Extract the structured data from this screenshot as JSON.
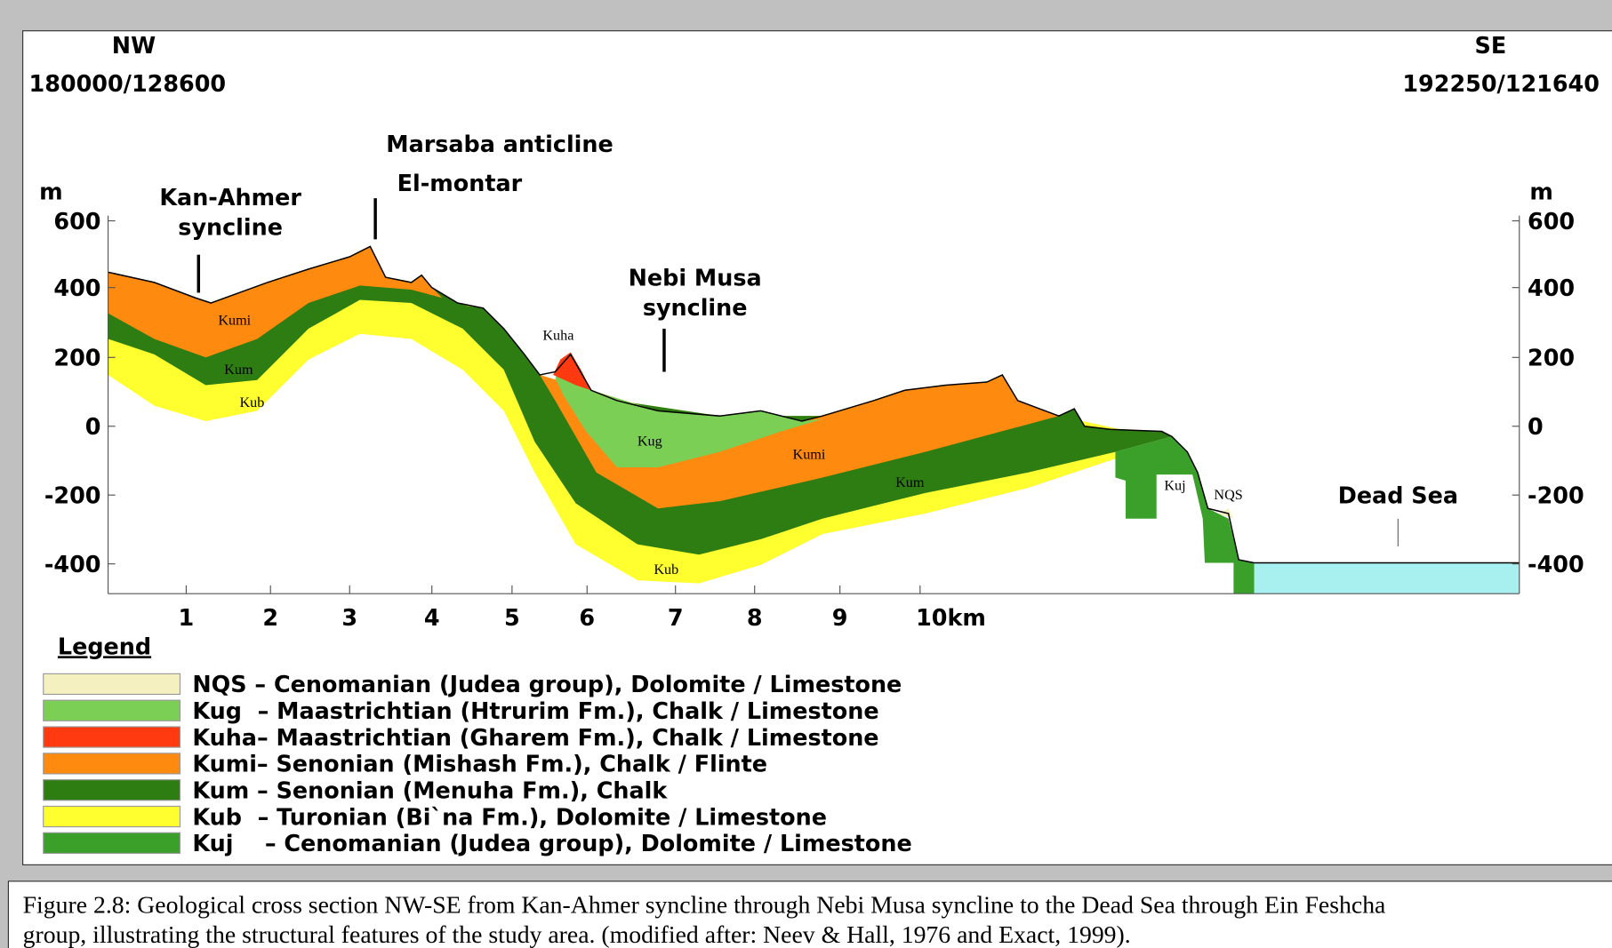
{
  "header": {
    "left_direction": "NW",
    "left_coordinates": "180000/128600",
    "right_direction": "SE",
    "right_coordinates": "192250/121640"
  },
  "features": {
    "kan_ahmer": [
      "Kan-Ahmer",
      "syncline"
    ],
    "marsaba": "Marsaba anticline",
    "el_montar": "El-montar",
    "nebi_musa": [
      "Nebi Musa",
      "syncline"
    ],
    "dead_sea": "Dead Sea"
  },
  "axes": {
    "left_unit": "m",
    "right_unit": "m",
    "left_ticks": [
      "600",
      "400",
      "200",
      "0",
      "-200",
      "-400"
    ],
    "right_ticks": [
      "600",
      "400",
      "200",
      "0",
      "-200",
      "-400"
    ],
    "x_ticks": [
      "1",
      "2",
      "3",
      "4",
      "5",
      "6",
      "7",
      "8",
      "9",
      "10km"
    ]
  },
  "section_labels": [
    "Kumi",
    "Kum",
    "Kub",
    "Kuha",
    "Kug",
    "Kumi",
    "Kum",
    "Kuj",
    "NQS",
    "Kub"
  ],
  "legend": {
    "title": "Legend",
    "items": [
      {
        "text": "NQS – Cenomanian (Judea group), Dolomite / Limestone",
        "color": "#f5f0c0"
      },
      {
        "text": "Kug  – Maastrichtian (Htrurim Fm.), Chalk / Limestone",
        "color": "#7ccf55"
      },
      {
        "text": "Kuha– Maastrichtian (Gharem Fm.), Chalk / Limestone",
        "color": "#ff3a10"
      },
      {
        "text": "Kumi– Senonian (Mishash Fm.), Chalk / Flinte",
        "color": "#ff8a10"
      },
      {
        "text": "Kum – Senonian (Menuha Fm.), Chalk",
        "color": "#2e7d12"
      },
      {
        "text": "Kub  – Turonian (Bi`na Fm.), Dolomite / Limestone",
        "color": "#ffff30"
      },
      {
        "text": "Kuj    – Cenomanian (Judea group), Dolomite / Limestone",
        "color": "#3aa02a"
      }
    ]
  },
  "caption": [
    "Figure 2.8: Geological cross section NW-SE from Kan-Ahmer syncline through Nebi Musa syncline to the Dead Sea through Ein Feshcha",
    "group, illustrating the structural features of the study area. (modified after: Neev & Hall, 1976 and Exact, 1999)."
  ]
}
